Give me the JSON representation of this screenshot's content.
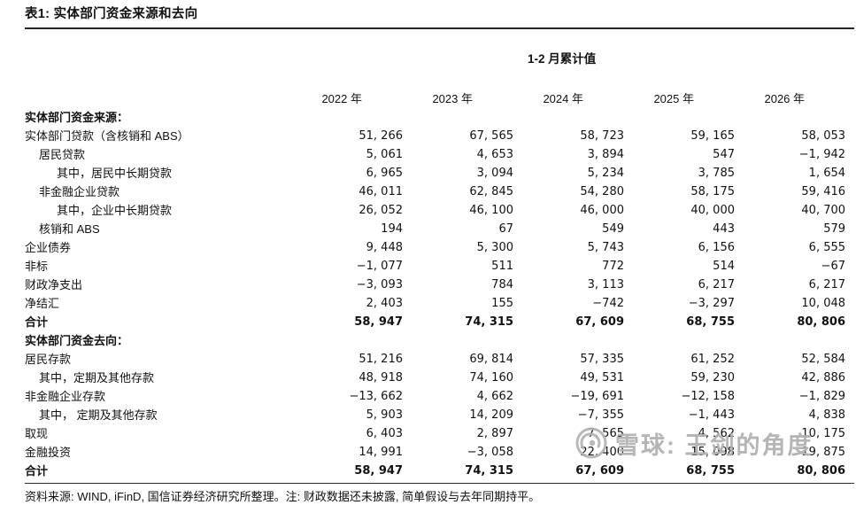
{
  "title": "表1: 实体部门资金来源和去向",
  "table": {
    "group_header": "1-2 月累计值",
    "year_headers": [
      "2022 年",
      "2023 年",
      "2024 年",
      "2025 年",
      "2026 年"
    ],
    "rows": [
      {
        "label": "实体部门资金来源：",
        "indent": 0,
        "bold": true,
        "section": true,
        "values": [
          "",
          "",
          "",
          "",
          ""
        ]
      },
      {
        "label": "实体部门贷款（含核销和 ABS）",
        "indent": 0,
        "bold": false,
        "section": false,
        "values": [
          "51, 266",
          "67, 565",
          "58, 723",
          "59, 165",
          "58, 053"
        ]
      },
      {
        "label": "居民贷款",
        "indent": 1,
        "bold": false,
        "section": false,
        "values": [
          "5, 061",
          "4, 653",
          "3, 894",
          "547",
          "−1, 942"
        ]
      },
      {
        "label": "其中，居民中长期贷款",
        "indent": 2,
        "bold": false,
        "section": false,
        "values": [
          "6, 965",
          "3, 094",
          "5, 234",
          "3, 785",
          "1, 654"
        ]
      },
      {
        "label": "非金融企业贷款",
        "indent": 1,
        "bold": false,
        "section": false,
        "values": [
          "46, 011",
          "62, 845",
          "54, 280",
          "58, 175",
          "59, 416"
        ]
      },
      {
        "label": "其中，企业中长期贷款",
        "indent": 2,
        "bold": false,
        "section": false,
        "values": [
          "26, 052",
          "46, 100",
          "46, 000",
          "40, 000",
          "40, 700"
        ]
      },
      {
        "label": "核销和 ABS",
        "indent": 1,
        "bold": false,
        "section": false,
        "values": [
          "194",
          "67",
          "549",
          "443",
          "579"
        ]
      },
      {
        "label": "企业债券",
        "indent": 0,
        "bold": false,
        "section": false,
        "values": [
          "9, 448",
          "5, 300",
          "5, 743",
          "6, 156",
          "6, 555"
        ]
      },
      {
        "label": "非标",
        "indent": 0,
        "bold": false,
        "section": false,
        "values": [
          "−1, 077",
          "511",
          "772",
          "514",
          "−67"
        ]
      },
      {
        "label": "财政净支出",
        "indent": 0,
        "bold": false,
        "section": false,
        "values": [
          "−3, 093",
          "784",
          "3, 113",
          "6, 217",
          "6, 217"
        ]
      },
      {
        "label": "净结汇",
        "indent": 0,
        "bold": false,
        "section": false,
        "values": [
          "2, 403",
          "155",
          "−742",
          "−3, 297",
          "10, 048"
        ]
      },
      {
        "label": "合计",
        "indent": 0,
        "bold": true,
        "section": false,
        "values": [
          "58, 947",
          "74, 315",
          "67, 609",
          "68, 755",
          "80, 806"
        ]
      },
      {
        "label": "实体部门资金去向：",
        "indent": 0,
        "bold": true,
        "section": true,
        "values": [
          "",
          "",
          "",
          "",
          ""
        ]
      },
      {
        "label": "居民存款",
        "indent": 0,
        "bold": false,
        "section": false,
        "values": [
          "51, 216",
          "69, 814",
          "57, 335",
          "61, 252",
          "52, 584"
        ]
      },
      {
        "label": "其中，定期及其他存款",
        "indent": 1,
        "bold": false,
        "section": false,
        "values": [
          "48, 918",
          "74, 160",
          "49, 531",
          "59, 230",
          "42, 886"
        ]
      },
      {
        "label": "非金融企业存款",
        "indent": 0,
        "bold": false,
        "section": false,
        "values": [
          "−13, 662",
          "4, 662",
          "−19, 691",
          "−12, 158",
          "−1, 829"
        ]
      },
      {
        "label": "其中， 定期及其他存款",
        "indent": 1,
        "bold": false,
        "section": false,
        "values": [
          "5, 903",
          "14, 209",
          "−7, 355",
          "−1, 443",
          "4, 838"
        ]
      },
      {
        "label": "取现",
        "indent": 0,
        "bold": false,
        "section": false,
        "values": [
          "6, 403",
          "2, 897",
          "7, 565",
          "4, 562",
          "10, 175"
        ]
      },
      {
        "label": "金融投资",
        "indent": 0,
        "bold": false,
        "section": false,
        "values": [
          "14, 991",
          "−3, 058",
          "22, 400",
          "15, 098",
          "19, 875"
        ]
      },
      {
        "label": "合计",
        "indent": 0,
        "bold": true,
        "section": false,
        "values": [
          "58, 947",
          "74, 315",
          "67, 609",
          "68, 755",
          "80, 806"
        ]
      }
    ]
  },
  "footer": {
    "text": "资料来源: WIND, iFinD, 国信证券经济研究所整理。注: 财政数据还未披露, 简单假设与去年同期持平。"
  },
  "watermark": {
    "text": "雪球: 王剑的角度",
    "color": "#b2b2b2"
  }
}
